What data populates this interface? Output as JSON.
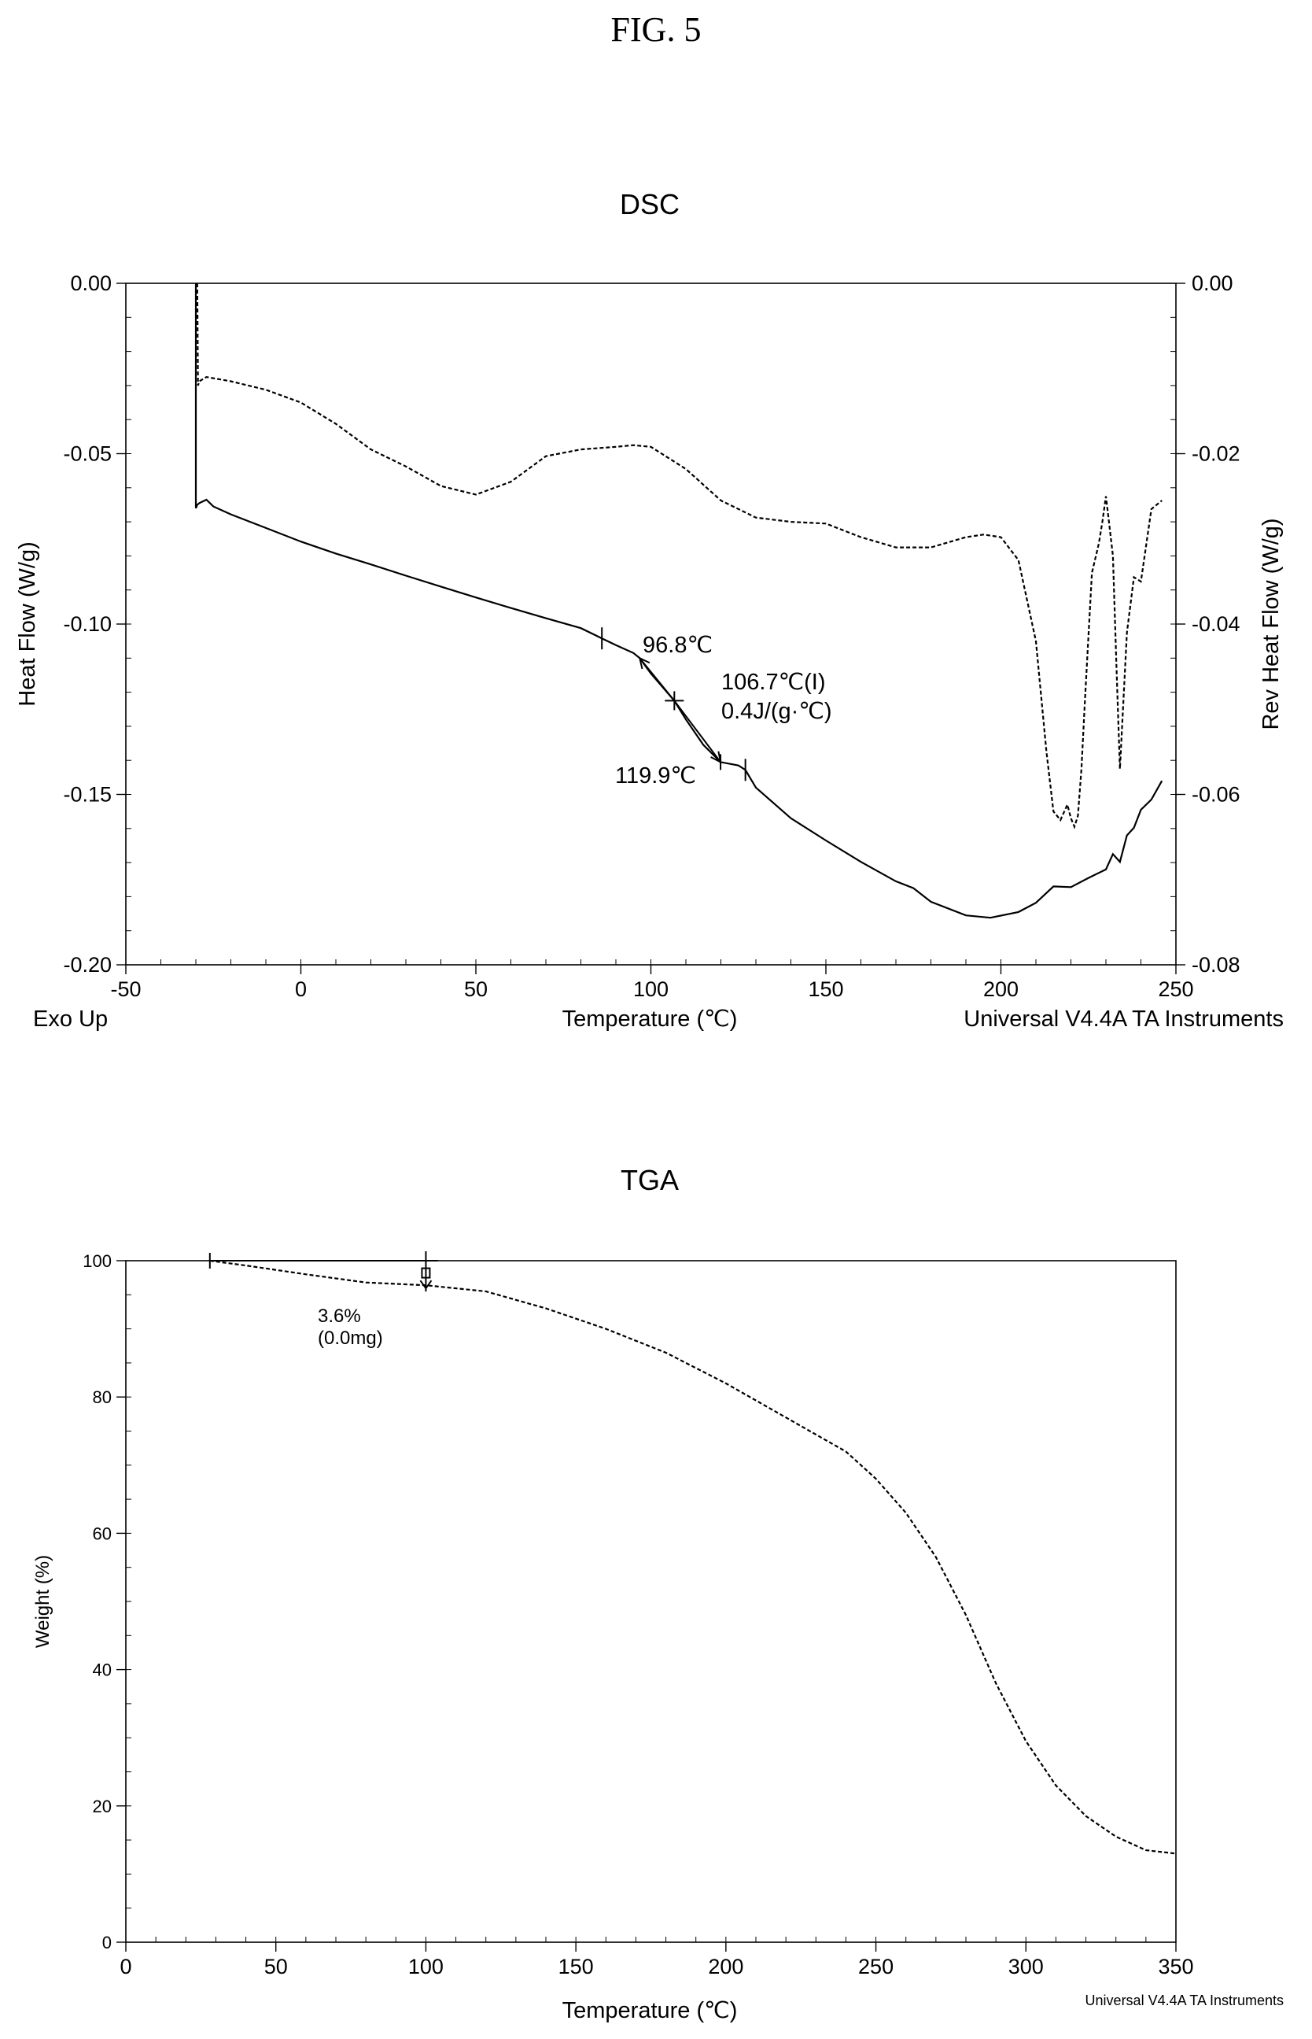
{
  "figure_label": "FIG. 5",
  "chart_data": [
    {
      "type": "line",
      "title": "DSC",
      "xlabel": "Temperature (℃)",
      "ylabel": "Heat Flow (W/g)",
      "y2label": "Rev Heat Flow (W/g)",
      "xlim": [
        -50,
        250
      ],
      "ylim": [
        -0.2,
        0.0
      ],
      "y2lim": [
        -0.08,
        0.0
      ],
      "xticks": [
        "-50",
        "0",
        "50",
        "100",
        "150",
        "200",
        "250"
      ],
      "yticks": [
        "0.00",
        "-0.05",
        "-0.10",
        "-0.15",
        "-0.20"
      ],
      "y2ticks": [
        "0.00",
        "-0.02",
        "-0.04",
        "-0.06",
        "-0.08"
      ],
      "grid": false,
      "footer_left": "Exo Up",
      "footer_right": "Universal V4.4A TA Instruments",
      "series": [
        {
          "axis": "left",
          "style": "solid",
          "x": [
            -30,
            -30,
            -29.6,
            -29,
            -27,
            -25,
            -20,
            -10,
            0,
            10,
            20,
            30,
            40,
            50,
            60,
            70,
            80,
            86,
            90,
            95,
            96.8,
            100,
            106.7,
            110,
            115,
            119.9,
            125,
            127,
            130,
            140,
            150,
            160,
            170,
            175,
            180,
            190,
            197,
            205,
            210,
            215,
            220,
            225,
            230,
            232,
            234,
            236,
            238,
            240,
            243,
            246
          ],
          "y": [
            0.0,
            -0.066,
            -0.065,
            -0.0645,
            -0.0635,
            -0.0655,
            -0.0678,
            -0.0718,
            -0.0758,
            -0.0793,
            -0.0825,
            -0.0858,
            -0.089,
            -0.0922,
            -0.0953,
            -0.0983,
            -0.1012,
            -0.1042,
            -0.1062,
            -0.1085,
            -0.11,
            -0.1145,
            -0.1225,
            -0.128,
            -0.1355,
            -0.1405,
            -0.1415,
            -0.1428,
            -0.148,
            -0.157,
            -0.1635,
            -0.1698,
            -0.1755,
            -0.1775,
            -0.1815,
            -0.1855,
            -0.1862,
            -0.1845,
            -0.1818,
            -0.177,
            -0.1772,
            -0.1745,
            -0.172,
            -0.1675,
            -0.1698,
            -0.162,
            -0.1598,
            -0.1545,
            -0.1515,
            -0.146
          ]
        },
        {
          "axis": "right",
          "style": "dashed",
          "x": [
            -29.6,
            -29.4,
            -29,
            -27,
            -20,
            -10,
            0,
            10,
            20,
            30,
            40,
            50,
            60,
            70,
            80,
            90,
            95,
            100,
            110,
            120,
            130,
            140,
            150,
            160,
            170,
            180,
            190,
            195,
            200,
            205,
            210,
            213,
            215,
            217,
            219,
            220,
            221,
            222,
            223,
            224,
            226,
            228,
            229,
            230,
            231,
            232,
            233,
            234,
            236,
            238,
            240,
            243,
            246
          ],
          "y": [
            0.0,
            -0.012,
            -0.0115,
            -0.011,
            -0.0115,
            -0.0125,
            -0.014,
            -0.0165,
            -0.0195,
            -0.0215,
            -0.0238,
            -0.0248,
            -0.0233,
            -0.0203,
            -0.0195,
            -0.0192,
            -0.019,
            -0.0192,
            -0.0218,
            -0.0255,
            -0.0275,
            -0.028,
            -0.0282,
            -0.0298,
            -0.031,
            -0.031,
            -0.0298,
            -0.0295,
            -0.0298,
            -0.0325,
            -0.042,
            -0.055,
            -0.062,
            -0.063,
            -0.0612,
            -0.0628,
            -0.0638,
            -0.0625,
            -0.057,
            -0.049,
            -0.034,
            -0.0305,
            -0.028,
            -0.025,
            -0.0285,
            -0.032,
            -0.045,
            -0.057,
            -0.041,
            -0.0345,
            -0.035,
            -0.0265,
            -0.0255
          ]
        }
      ],
      "annotations": {
        "onset_label": "96.8℃",
        "mid_label_1": "106.7℃(I)",
        "mid_label_2": "0.4J/(g·℃)",
        "end_label": "119.9℃"
      }
    },
    {
      "type": "line",
      "title": "TGA",
      "xlabel": "Temperature (℃)",
      "ylabel": "Weight (%)",
      "xlim": [
        0,
        350
      ],
      "ylim": [
        0,
        100
      ],
      "xticks": [
        "0",
        "50",
        "100",
        "150",
        "200",
        "250",
        "300",
        "350"
      ],
      "yticks": [
        "100",
        "80",
        "60",
        "40",
        "20",
        "0"
      ],
      "grid": false,
      "footer_right": "Universal V4.4A TA Instruments",
      "series": [
        {
          "style": "dashed",
          "x": [
            28,
            40,
            60,
            80,
            100,
            120,
            140,
            160,
            180,
            200,
            220,
            240,
            250,
            260,
            270,
            280,
            290,
            300,
            310,
            320,
            330,
            340,
            350
          ],
          "y": [
            100,
            99.3,
            98.0,
            96.8,
            96.4,
            95.5,
            93.0,
            90.0,
            86.5,
            82.0,
            77.0,
            72.0,
            68.0,
            63.0,
            56.5,
            48.0,
            38.0,
            29.5,
            23.0,
            18.5,
            15.5,
            13.5,
            13.0
          ]
        }
      ],
      "annotations": {
        "weight_loss_1": "3.6%",
        "weight_loss_2": "(0.0mg)"
      }
    }
  ]
}
